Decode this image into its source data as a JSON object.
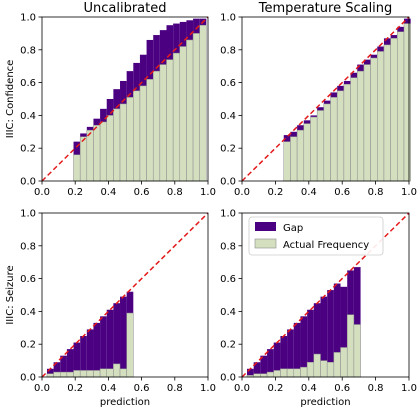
{
  "colors": {
    "gap": "#4b0082",
    "actual": "#d4dfc0",
    "bar_edge": "#8c8c8c",
    "diagonal": "#e31a1c"
  },
  "legend": {
    "gap_label": "Gap",
    "actual_label": "Actual Frequency"
  },
  "chart_data": [
    {
      "type": "bar",
      "title": "Uncalibrated",
      "xlabel": "",
      "ylabel": "IIIC: Confidence",
      "xlim": [
        0,
        1
      ],
      "ylim": [
        0,
        1
      ],
      "xticks": [
        "0.0",
        "0.2",
        "0.4",
        "0.6",
        "0.8",
        "1.0"
      ],
      "yticks": [
        "0.0",
        "0.2",
        "0.4",
        "0.6",
        "0.8",
        "1.0"
      ],
      "bin_width": 0.04,
      "series": [
        {
          "name": "Actual Frequency",
          "x": [
            0.21,
            0.25,
            0.29,
            0.33,
            0.37,
            0.41,
            0.45,
            0.49,
            0.53,
            0.57,
            0.61,
            0.65,
            0.69,
            0.73,
            0.77,
            0.81,
            0.85,
            0.89,
            0.93,
            0.97
          ],
          "values": [
            0.16,
            0.27,
            0.31,
            0.34,
            0.36,
            0.4,
            0.44,
            0.47,
            0.51,
            0.55,
            0.58,
            0.62,
            0.67,
            0.71,
            0.74,
            0.78,
            0.82,
            0.86,
            0.9,
            0.95
          ]
        },
        {
          "name": "Gap",
          "x": [
            0.21,
            0.25,
            0.29,
            0.33,
            0.37,
            0.41,
            0.45,
            0.49,
            0.53,
            0.57,
            0.61,
            0.65,
            0.69,
            0.73,
            0.77,
            0.81,
            0.85,
            0.89,
            0.93,
            0.97
          ],
          "values": [
            0.24,
            0.29,
            0.33,
            0.38,
            0.44,
            0.5,
            0.56,
            0.61,
            0.67,
            0.72,
            0.77,
            0.86,
            0.89,
            0.92,
            0.95,
            0.96,
            0.97,
            0.98,
            0.99,
            0.99
          ]
        }
      ],
      "diagonal": true
    },
    {
      "type": "bar",
      "title": "Temperature Scaling",
      "xlabel": "",
      "ylabel": "",
      "xlim": [
        0,
        1
      ],
      "ylim": [
        0,
        1
      ],
      "xticks": [
        "0.0",
        "0.2",
        "0.4",
        "0.6",
        "0.8",
        "1.0"
      ],
      "yticks": [
        "0.0",
        "0.2",
        "0.4",
        "0.6",
        "0.8",
        "1.0"
      ],
      "bin_width": 0.04,
      "series": [
        {
          "name": "Actual Frequency",
          "x": [
            0.27,
            0.31,
            0.35,
            0.39,
            0.43,
            0.47,
            0.51,
            0.55,
            0.59,
            0.63,
            0.67,
            0.71,
            0.75,
            0.79,
            0.83,
            0.87,
            0.91,
            0.95,
            0.99
          ],
          "values": [
            0.24,
            0.27,
            0.31,
            0.35,
            0.39,
            0.43,
            0.47,
            0.51,
            0.55,
            0.59,
            0.63,
            0.67,
            0.71,
            0.75,
            0.79,
            0.83,
            0.87,
            0.91,
            0.96
          ]
        },
        {
          "name": "Gap",
          "x": [
            0.27,
            0.31,
            0.35,
            0.39,
            0.43,
            0.47,
            0.51,
            0.55,
            0.59,
            0.63,
            0.67,
            0.71,
            0.75,
            0.79,
            0.83,
            0.87,
            0.91,
            0.95,
            0.99
          ],
          "values": [
            0.28,
            0.3,
            0.34,
            0.37,
            0.4,
            0.45,
            0.49,
            0.54,
            0.58,
            0.61,
            0.66,
            0.71,
            0.74,
            0.77,
            0.82,
            0.87,
            0.89,
            0.94,
            0.99
          ]
        }
      ],
      "diagonal": true
    },
    {
      "type": "bar",
      "title": "",
      "xlabel": "prediction",
      "ylabel": "IIIC: Seizure",
      "xlim": [
        0,
        1
      ],
      "ylim": [
        0,
        1
      ],
      "xticks": [
        "0.0",
        "0.2",
        "0.4",
        "0.6",
        "0.8",
        "1.0"
      ],
      "yticks": [
        "0.0",
        "0.2",
        "0.4",
        "0.6",
        "0.8",
        "1.0"
      ],
      "bin_width": 0.04,
      "series": [
        {
          "name": "Actual Frequency",
          "x": [
            0.05,
            0.09,
            0.13,
            0.17,
            0.21,
            0.25,
            0.29,
            0.33,
            0.37,
            0.41,
            0.45,
            0.49,
            0.53
          ],
          "values": [
            0.02,
            0.03,
            0.03,
            0.03,
            0.04,
            0.04,
            0.04,
            0.04,
            0.05,
            0.05,
            0.08,
            0.05,
            0.39
          ]
        },
        {
          "name": "Gap",
          "x": [
            0.05,
            0.09,
            0.13,
            0.17,
            0.21,
            0.25,
            0.29,
            0.33,
            0.37,
            0.41,
            0.45,
            0.49,
            0.53
          ],
          "values": [
            0.05,
            0.09,
            0.13,
            0.17,
            0.21,
            0.25,
            0.29,
            0.33,
            0.37,
            0.41,
            0.45,
            0.49,
            0.52
          ]
        }
      ],
      "diagonal": true
    },
    {
      "type": "bar",
      "title": "",
      "xlabel": "prediction",
      "ylabel": "",
      "xlim": [
        0,
        1
      ],
      "ylim": [
        0,
        1
      ],
      "xticks": [
        "0.0",
        "0.2",
        "0.4",
        "0.6",
        "0.8",
        "1.0"
      ],
      "yticks": [
        "0.0",
        "0.2",
        "0.4",
        "0.6",
        "0.8",
        "1.0"
      ],
      "bin_width": 0.04,
      "series": [
        {
          "name": "Actual Frequency",
          "x": [
            0.05,
            0.09,
            0.13,
            0.17,
            0.21,
            0.25,
            0.29,
            0.33,
            0.37,
            0.41,
            0.45,
            0.49,
            0.53,
            0.57,
            0.61,
            0.65,
            0.69
          ],
          "values": [
            0.01,
            0.02,
            0.02,
            0.03,
            0.04,
            0.05,
            0.05,
            0.05,
            0.06,
            0.09,
            0.14,
            0.1,
            0.09,
            0.15,
            0.18,
            0.38,
            0.32
          ]
        },
        {
          "name": "Gap",
          "x": [
            0.05,
            0.09,
            0.13,
            0.17,
            0.21,
            0.25,
            0.29,
            0.33,
            0.37,
            0.41,
            0.45,
            0.49,
            0.53,
            0.57,
            0.61,
            0.65,
            0.69
          ],
          "values": [
            0.05,
            0.09,
            0.13,
            0.17,
            0.21,
            0.25,
            0.29,
            0.33,
            0.37,
            0.41,
            0.45,
            0.49,
            0.53,
            0.57,
            0.55,
            0.65,
            0.67
          ]
        }
      ],
      "diagonal": true
    }
  ]
}
